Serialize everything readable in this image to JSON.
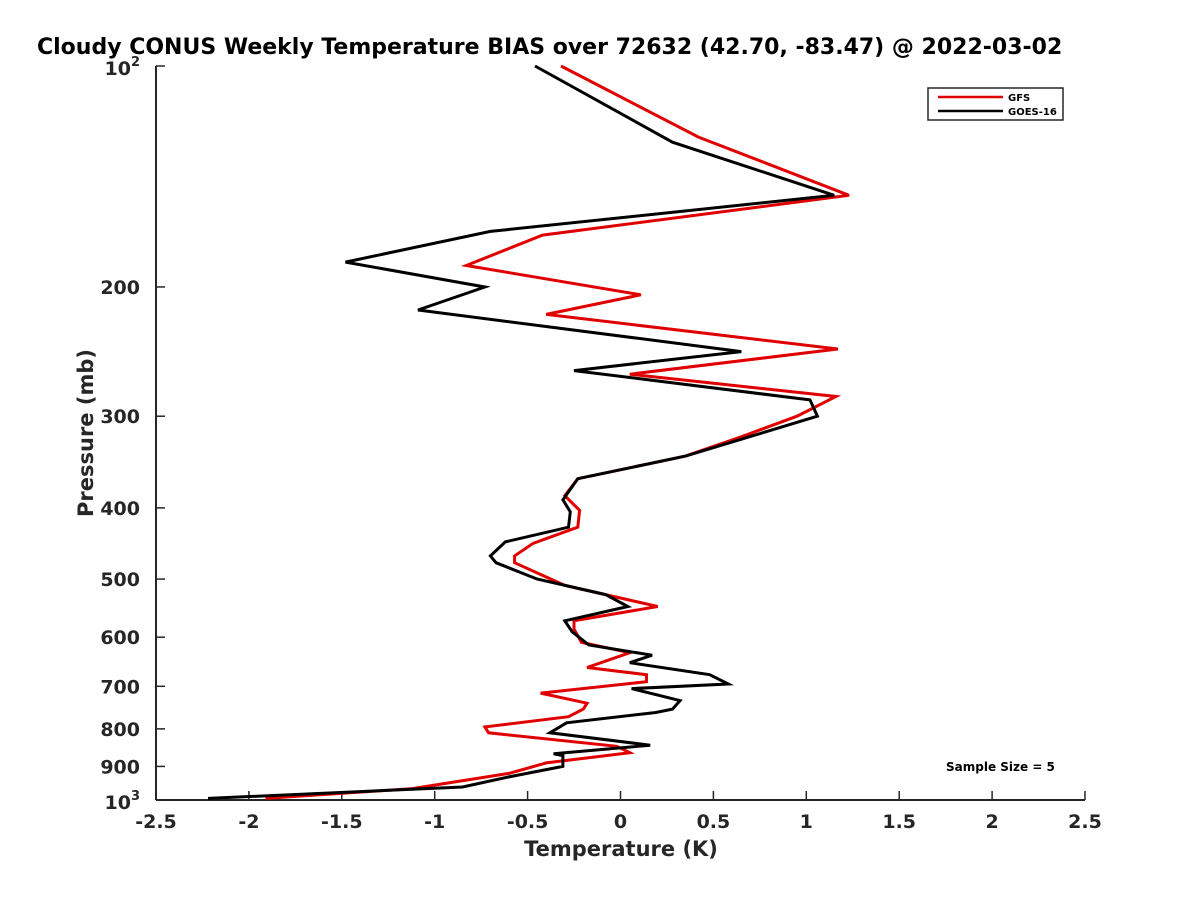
{
  "chart_data": {
    "type": "line",
    "title": "Cloudy CONUS Weekly Temperature BIAS over 72632 (42.70, -83.47) @ 2022-03-02",
    "xlabel": "Temperature (K)",
    "ylabel": "Pressure (mb)",
    "xlim": [
      -2.5,
      2.5
    ],
    "ylim": [
      100,
      1000
    ],
    "yscale": "log",
    "y_reversed": true,
    "grid": false,
    "legend_position": "top-right",
    "x_ticks": [
      {
        "value": -2.5,
        "label": "-2.5"
      },
      {
        "value": -2,
        "label": "-2"
      },
      {
        "value": -1.5,
        "label": "-1.5"
      },
      {
        "value": -1,
        "label": "-1"
      },
      {
        "value": -0.5,
        "label": "-0.5"
      },
      {
        "value": 0,
        "label": "0"
      },
      {
        "value": 0.5,
        "label": "0.5"
      },
      {
        "value": 1,
        "label": "1"
      },
      {
        "value": 1.5,
        "label": "1.5"
      },
      {
        "value": 2,
        "label": "2"
      },
      {
        "value": 2.5,
        "label": "2.5"
      }
    ],
    "y_ticks": [
      {
        "value": 100,
        "base": "10",
        "exp": "2"
      },
      {
        "value": 200,
        "label": "200"
      },
      {
        "value": 300,
        "label": "300"
      },
      {
        "value": 400,
        "label": "400"
      },
      {
        "value": 500,
        "label": "500"
      },
      {
        "value": 600,
        "label": "600"
      },
      {
        "value": 700,
        "label": "700"
      },
      {
        "value": 800,
        "label": "800"
      },
      {
        "value": 900,
        "label": "900"
      },
      {
        "value": 1000,
        "base": "10",
        "exp": "3"
      }
    ],
    "series": [
      {
        "name": "GFS",
        "color": "#e00000",
        "points": [
          [
            -0.32,
            100
          ],
          [
            0.42,
            125
          ],
          [
            1.23,
            150
          ],
          [
            -0.42,
            170
          ],
          [
            -0.83,
            187
          ],
          [
            0.11,
            205
          ],
          [
            -0.4,
            218
          ],
          [
            1.17,
            243
          ],
          [
            0.05,
            263
          ],
          [
            1.16,
            282
          ],
          [
            0.95,
            300
          ],
          [
            0.65,
            320
          ],
          [
            0.35,
            340
          ],
          [
            -0.23,
            365
          ],
          [
            -0.3,
            385
          ],
          [
            -0.22,
            403
          ],
          [
            -0.23,
            425
          ],
          [
            -0.47,
            447
          ],
          [
            -0.57,
            465
          ],
          [
            -0.57,
            475
          ],
          [
            -0.3,
            510
          ],
          [
            0.2,
            545
          ],
          [
            -0.25,
            570
          ],
          [
            -0.25,
            585
          ],
          [
            -0.21,
            610
          ],
          [
            0.05,
            630
          ],
          [
            -0.18,
            660
          ],
          [
            0.14,
            675
          ],
          [
            0.14,
            690
          ],
          [
            -0.43,
            715
          ],
          [
            -0.18,
            738
          ],
          [
            -0.2,
            752
          ],
          [
            -0.28,
            770
          ],
          [
            -0.73,
            795
          ],
          [
            -0.71,
            810
          ],
          [
            -0.02,
            845
          ],
          [
            0.05,
            862
          ],
          [
            -0.4,
            890
          ],
          [
            -0.6,
            920
          ],
          [
            -0.95,
            950
          ],
          [
            -1.12,
            965
          ],
          [
            -1.91,
            995
          ]
        ]
      },
      {
        "name": "GOES-16",
        "color": "#000000",
        "points": [
          [
            -0.46,
            100
          ],
          [
            0.28,
            127
          ],
          [
            1.15,
            150
          ],
          [
            -0.7,
            168
          ],
          [
            -1.48,
            185
          ],
          [
            -0.73,
            200
          ],
          [
            -1.09,
            215
          ],
          [
            0.65,
            245
          ],
          [
            -0.25,
            260
          ],
          [
            1.02,
            285
          ],
          [
            1.06,
            300
          ],
          [
            0.35,
            340
          ],
          [
            -0.23,
            365
          ],
          [
            -0.31,
            390
          ],
          [
            -0.27,
            405
          ],
          [
            -0.28,
            425
          ],
          [
            -0.62,
            445
          ],
          [
            -0.7,
            465
          ],
          [
            -0.67,
            475
          ],
          [
            -0.45,
            500
          ],
          [
            -0.08,
            525
          ],
          [
            0.04,
            545
          ],
          [
            -0.3,
            570
          ],
          [
            -0.26,
            590
          ],
          [
            -0.17,
            615
          ],
          [
            0.17,
            635
          ],
          [
            0.05,
            650
          ],
          [
            0.48,
            675
          ],
          [
            0.58,
            695
          ],
          [
            0.06,
            705
          ],
          [
            0.32,
            732
          ],
          [
            0.28,
            752
          ],
          [
            0.19,
            760
          ],
          [
            -0.29,
            785
          ],
          [
            -0.38,
            810
          ],
          [
            0.16,
            842
          ],
          [
            -0.36,
            865
          ],
          [
            -0.31,
            870
          ],
          [
            -0.31,
            900
          ],
          [
            -0.6,
            930
          ],
          [
            -0.85,
            960
          ],
          [
            -2.22,
            995
          ]
        ]
      }
    ],
    "annotations": [
      {
        "text": "Sample Size = 5"
      }
    ]
  }
}
